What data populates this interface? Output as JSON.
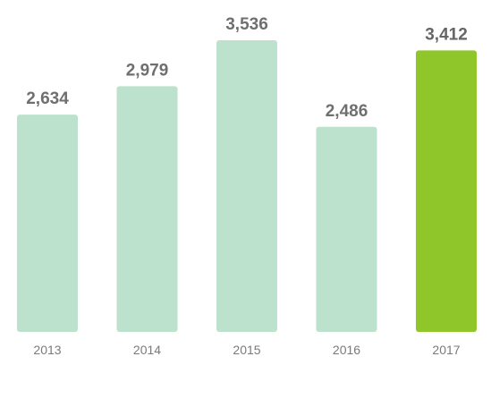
{
  "chart_data": {
    "type": "bar",
    "categories": [
      "2013",
      "2014",
      "2015",
      "2016",
      "2017"
    ],
    "values": [
      2634,
      2979,
      3536,
      2486,
      3412
    ],
    "value_labels": [
      "2,634",
      "2,979",
      "3,536",
      "2,486",
      "3,412"
    ],
    "highlight_index": 4,
    "ylim": [
      0,
      3536
    ],
    "grid": false,
    "colors": {
      "bar": "#bce2cd",
      "highlight": "#8fc72a",
      "value_text": "#6f6f6f",
      "tick_text": "#7a7a7a"
    }
  }
}
